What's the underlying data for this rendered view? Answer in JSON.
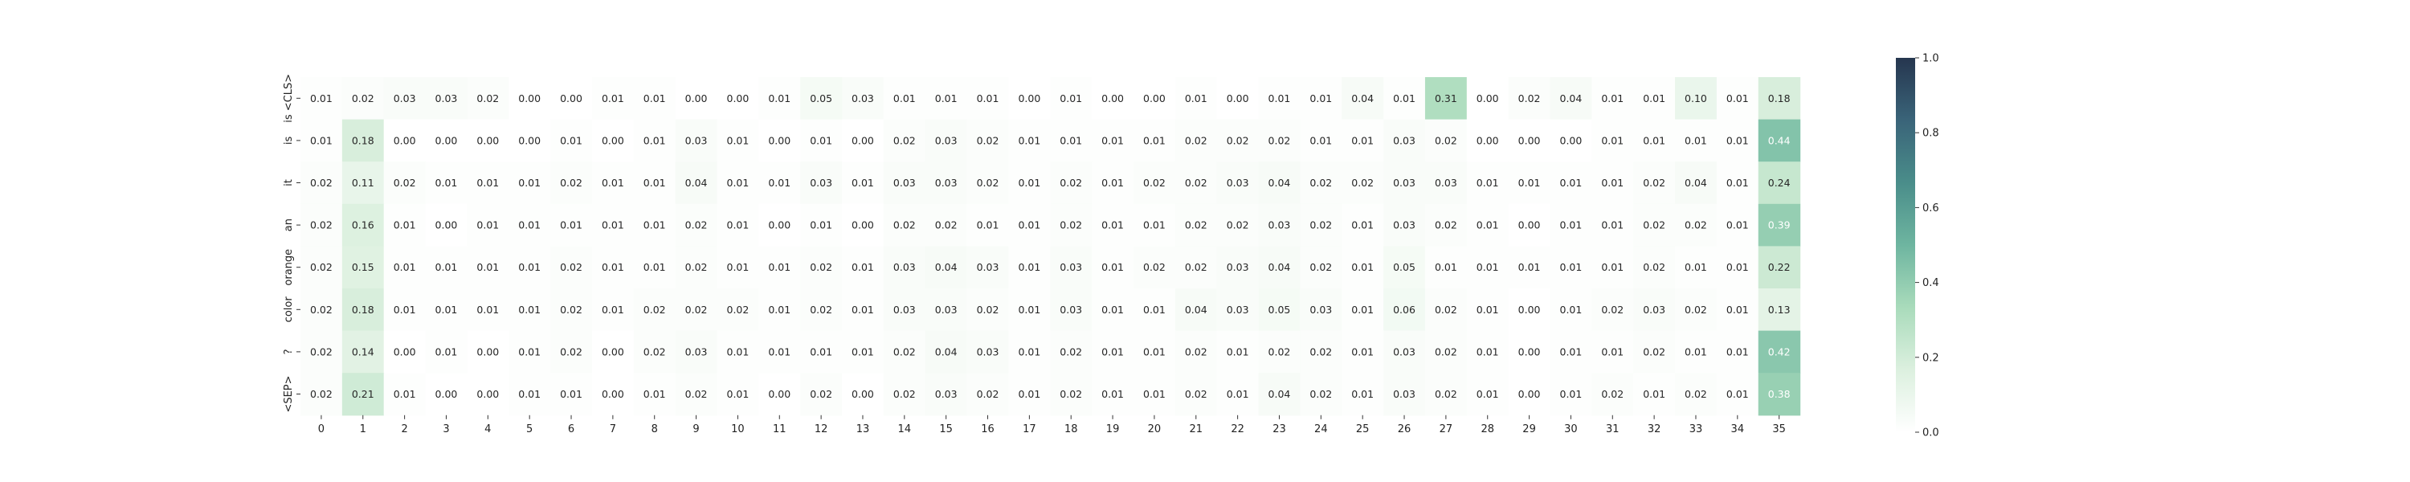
{
  "chart_data": {
    "type": "heatmap",
    "title": "",
    "xlabel": "",
    "ylabel": "",
    "x_tick_labels": [
      "0",
      "1",
      "2",
      "3",
      "4",
      "5",
      "6",
      "7",
      "8",
      "9",
      "10",
      "11",
      "12",
      "13",
      "14",
      "15",
      "16",
      "17",
      "18",
      "19",
      "20",
      "21",
      "22",
      "23",
      "24",
      "25",
      "26",
      "27",
      "28",
      "29",
      "30",
      "31",
      "32",
      "33",
      "34",
      "35"
    ],
    "y_tick_labels": [
      "is <CLS>",
      "is",
      "it",
      "an",
      "orange",
      "color",
      "?",
      "<SEP>"
    ],
    "values": [
      [
        0.01,
        0.02,
        0.03,
        0.03,
        0.02,
        0.0,
        0.0,
        0.01,
        0.01,
        0.0,
        0.0,
        0.01,
        0.05,
        0.03,
        0.01,
        0.01,
        0.01,
        0.0,
        0.01,
        0.0,
        0.0,
        0.01,
        0.0,
        0.01,
        0.01,
        0.04,
        0.01,
        0.31,
        0.0,
        0.02,
        0.04,
        0.01,
        0.01,
        0.1,
        0.01,
        0.18
      ],
      [
        0.01,
        0.18,
        0.0,
        0.0,
        0.0,
        0.0,
        0.01,
        0.0,
        0.01,
        0.03,
        0.01,
        0.0,
        0.01,
        0.0,
        0.02,
        0.03,
        0.02,
        0.01,
        0.01,
        0.01,
        0.01,
        0.02,
        0.02,
        0.02,
        0.01,
        0.01,
        0.03,
        0.02,
        0.0,
        0.0,
        0.0,
        0.01,
        0.01,
        0.01,
        0.01,
        0.44
      ],
      [
        0.02,
        0.11,
        0.02,
        0.01,
        0.01,
        0.01,
        0.02,
        0.01,
        0.01,
        0.04,
        0.01,
        0.01,
        0.03,
        0.01,
        0.03,
        0.03,
        0.02,
        0.01,
        0.02,
        0.01,
        0.02,
        0.02,
        0.03,
        0.04,
        0.02,
        0.02,
        0.03,
        0.03,
        0.01,
        0.01,
        0.01,
        0.01,
        0.02,
        0.04,
        0.01,
        0.24
      ],
      [
        0.02,
        0.16,
        0.01,
        0.0,
        0.01,
        0.01,
        0.01,
        0.01,
        0.01,
        0.02,
        0.01,
        0.0,
        0.01,
        0.0,
        0.02,
        0.02,
        0.01,
        0.01,
        0.02,
        0.01,
        0.01,
        0.02,
        0.02,
        0.03,
        0.02,
        0.01,
        0.03,
        0.02,
        0.01,
        0.0,
        0.01,
        0.01,
        0.02,
        0.02,
        0.01,
        0.39
      ],
      [
        0.02,
        0.15,
        0.01,
        0.01,
        0.01,
        0.01,
        0.02,
        0.01,
        0.01,
        0.02,
        0.01,
        0.01,
        0.02,
        0.01,
        0.03,
        0.04,
        0.03,
        0.01,
        0.03,
        0.01,
        0.02,
        0.02,
        0.03,
        0.04,
        0.02,
        0.01,
        0.05,
        0.01,
        0.01,
        0.01,
        0.01,
        0.01,
        0.02,
        0.01,
        0.01,
        0.22
      ],
      [
        0.02,
        0.18,
        0.01,
        0.01,
        0.01,
        0.01,
        0.02,
        0.01,
        0.02,
        0.02,
        0.02,
        0.01,
        0.02,
        0.01,
        0.03,
        0.03,
        0.02,
        0.01,
        0.03,
        0.01,
        0.01,
        0.04,
        0.03,
        0.05,
        0.03,
        0.01,
        0.06,
        0.02,
        0.01,
        0.0,
        0.01,
        0.02,
        0.03,
        0.02,
        0.01,
        0.13
      ],
      [
        0.02,
        0.14,
        0.0,
        0.01,
        0.0,
        0.01,
        0.02,
        0.0,
        0.02,
        0.03,
        0.01,
        0.01,
        0.01,
        0.01,
        0.02,
        0.04,
        0.03,
        0.01,
        0.02,
        0.01,
        0.01,
        0.02,
        0.01,
        0.02,
        0.02,
        0.01,
        0.03,
        0.02,
        0.01,
        0.0,
        0.01,
        0.01,
        0.02,
        0.01,
        0.01,
        0.42
      ],
      [
        0.02,
        0.21,
        0.01,
        0.0,
        0.0,
        0.01,
        0.01,
        0.0,
        0.01,
        0.02,
        0.01,
        0.0,
        0.02,
        0.0,
        0.02,
        0.03,
        0.02,
        0.01,
        0.02,
        0.01,
        0.01,
        0.02,
        0.01,
        0.04,
        0.02,
        0.01,
        0.03,
        0.02,
        0.01,
        0.0,
        0.01,
        0.02,
        0.01,
        0.02,
        0.01,
        0.38
      ]
    ],
    "value_format": "0.00",
    "colorbar": {
      "vmin": 0.0,
      "vmax": 1.0,
      "tick_labels": [
        "0.0",
        "0.2",
        "0.4",
        "0.6",
        "0.8",
        "1.0"
      ],
      "tick_values": [
        0.0,
        0.2,
        0.4,
        0.6,
        0.8,
        1.0
      ],
      "colors": [
        "#ffffff",
        "#dcf0df",
        "#a9dbbb",
        "#6eb5a0",
        "#4a8d8a",
        "#3a6479",
        "#26364f"
      ]
    },
    "grid": false,
    "legend": "colorbar-right"
  }
}
